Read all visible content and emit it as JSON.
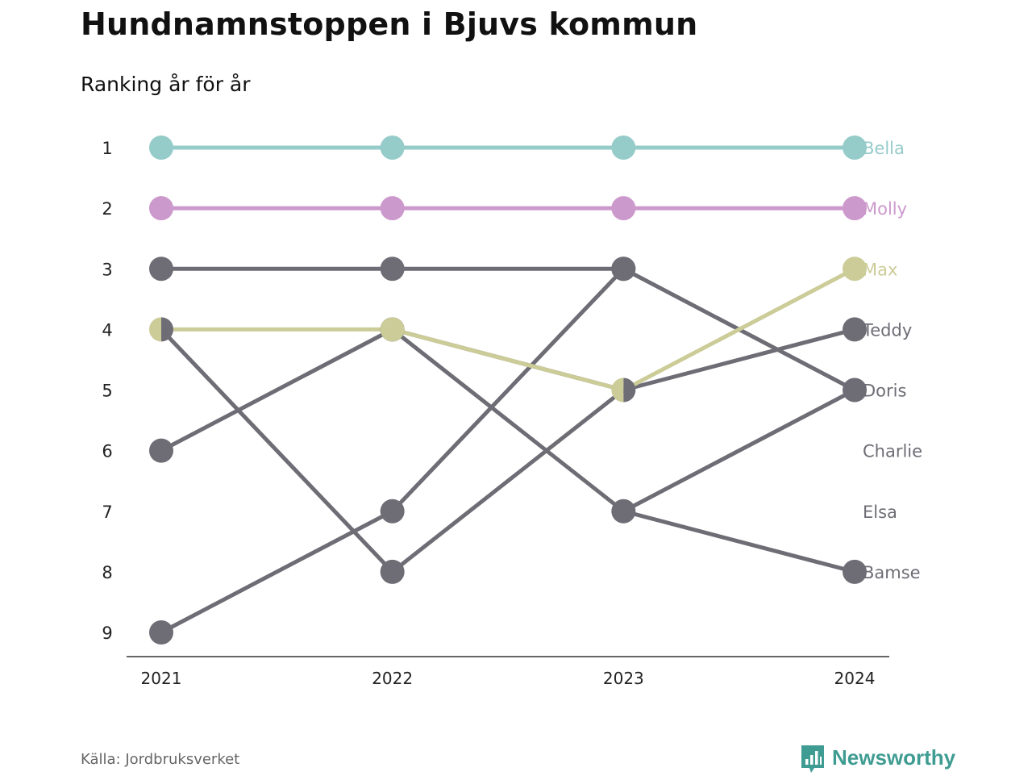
{
  "header": {
    "title": "Hundnamnstoppen i Bjuvs kommun",
    "subtitle": "Ranking år för år"
  },
  "footer": {
    "source": "Källa: Jordbruksverket",
    "brand": "Newsworthy"
  },
  "icons": {
    "brand_logo": "bar-chart-speech-bubble-icon"
  },
  "colors": {
    "Bella": "#95cbc9",
    "Molly": "#cc99cc",
    "Max": "#cccc99",
    "other": "#6e6d75",
    "brand": "#3f9c92"
  },
  "chart_data": {
    "type": "line",
    "subtype": "bump",
    "title": "Hundnamnstoppen i Bjuvs kommun",
    "subtitle": "Ranking år för år",
    "x": [
      "2021",
      "2022",
      "2023",
      "2024"
    ],
    "y_ticks": [
      "1",
      "2",
      "3",
      "4",
      "5",
      "6",
      "7",
      "8",
      "9"
    ],
    "ylim": [
      1,
      9
    ],
    "y_inverted": true,
    "grid": false,
    "series": [
      {
        "name": "Bella",
        "values": [
          1,
          1,
          1,
          1
        ],
        "color": "#95cbc9"
      },
      {
        "name": "Molly",
        "values": [
          2,
          2,
          2,
          2
        ],
        "color": "#cc99cc"
      },
      {
        "name": "Max",
        "values": [
          4,
          4,
          5,
          3
        ],
        "color": "#cccc99"
      },
      {
        "name": "Teddy",
        "values": [
          6,
          4,
          5,
          4
        ],
        "color": "#6e6d75"
      },
      {
        "name": "Doris",
        "values": [
          3,
          3,
          3,
          5
        ],
        "color": "#6e6d75"
      },
      {
        "name": "Charlie",
        "values": [
          4,
          8,
          5,
          null
        ],
        "color": "#6e6d75"
      },
      {
        "name": "Elsa",
        "values": [
          9,
          7,
          3,
          null
        ],
        "color": "#6e6d75"
      },
      {
        "name": "Bamse",
        "values": [
          null,
          4,
          7,
          8
        ],
        "color": "#6e6d75"
      }
    ],
    "extra_segments": [
      {
        "from": [
          "2023",
          7
        ],
        "to": [
          "2024",
          5
        ],
        "color": "#6e6d75"
      }
    ],
    "half_markers": [
      {
        "x": "2021",
        "value": 4,
        "left": "#cccc99",
        "right": "#6e6d75"
      },
      {
        "x": "2023",
        "value": 5,
        "left": "#cccc99",
        "right": "#6e6d75"
      }
    ]
  }
}
